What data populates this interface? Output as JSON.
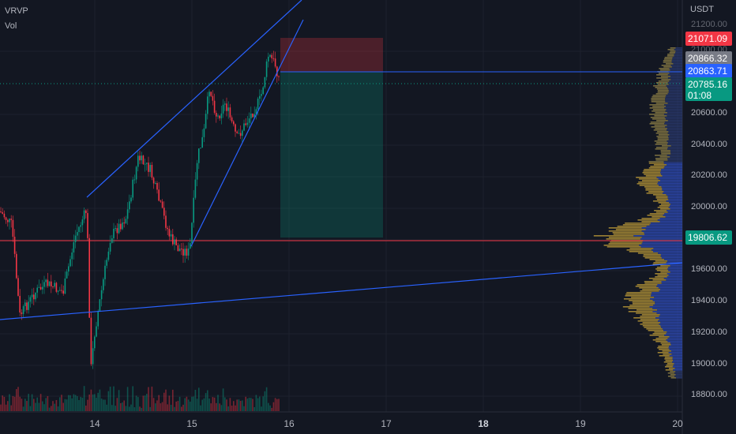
{
  "legend": {
    "indicator": "VRVP",
    "volume": "Vol"
  },
  "price_axis": {
    "currency": "USDT",
    "ticks": [
      "21200.00",
      "21000.00",
      "20600.00",
      "20400.00",
      "20200.00",
      "20000.00",
      "19600.00",
      "19400.00",
      "19200.00",
      "19000.00",
      "18800.00"
    ]
  },
  "time_axis": {
    "labels": [
      "14",
      "15",
      "16",
      "17",
      "18",
      "19",
      "20"
    ],
    "bold_label": "18"
  },
  "price_tags": {
    "stop_loss": {
      "value": "21071.09",
      "color": "#f23645"
    },
    "entry": {
      "value": "20866.32",
      "color": "#787b86"
    },
    "line_price": {
      "value": "20863.71",
      "color": "#2962ff"
    },
    "last_price": {
      "value": "20785.16",
      "countdown": "01:08",
      "color": "#089981"
    },
    "support": {
      "value": "19806.62",
      "color": "#f23645"
    }
  },
  "chart_data": {
    "type": "candlestick",
    "symbol_quote": "USDT",
    "y_range": [
      18700,
      21250
    ],
    "x_days": [
      "14",
      "15",
      "16",
      "17",
      "18",
      "19",
      "20"
    ],
    "position": {
      "entry": 20866.32,
      "stop": 21071.09,
      "target": 19806.62
    },
    "horizontal_levels": [
      20863.71,
      19806.62
    ],
    "last_price": 20785.16
  }
}
